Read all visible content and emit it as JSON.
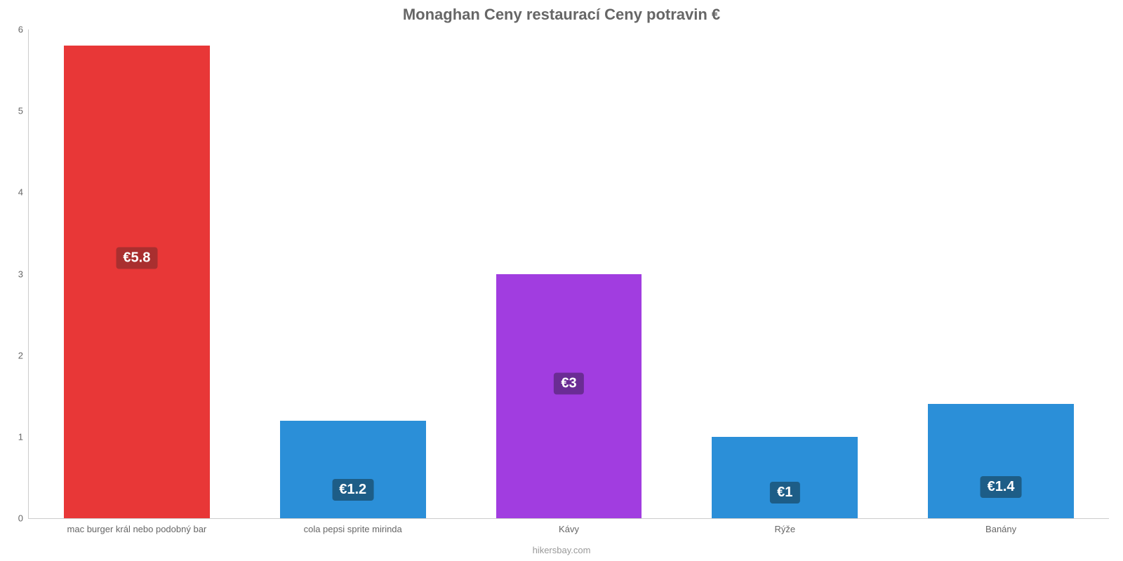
{
  "chart": {
    "type": "bar",
    "title": "Monaghan Ceny restaurací Ceny potravin €",
    "title_fontsize": 22,
    "title_color": "#666666",
    "subtitle": "hikersbay.com",
    "subtitle_color": "#999999",
    "background_color": "#ffffff",
    "axis_color": "#cccccc",
    "tick_label_color": "#666666",
    "tick_label_fontsize": 13,
    "y_axis": {
      "min": 0,
      "max": 6,
      "ticks": [
        0,
        1,
        2,
        3,
        4,
        5,
        6
      ]
    },
    "bar_width_pct": 13.5,
    "value_badge": {
      "fontsize": 20,
      "text_color": "#ffffff",
      "border_radius": 4
    },
    "series": [
      {
        "category": "mac burger král nebo podobný bar",
        "value": 5.8,
        "value_label": "€5.8",
        "bar_color": "#e83737",
        "badge_bg": "#a92f2f"
      },
      {
        "category": "cola pepsi sprite mirinda",
        "value": 1.2,
        "value_label": "€1.2",
        "bar_color": "#2b8fd8",
        "badge_bg": "#1d5d87"
      },
      {
        "category": "Kávy",
        "value": 3.0,
        "value_label": "€3",
        "bar_color": "#a13de0",
        "badge_bg": "#6a2c94"
      },
      {
        "category": "Rýže",
        "value": 1.0,
        "value_label": "€1",
        "bar_color": "#2b8fd8",
        "badge_bg": "#1d5d87"
      },
      {
        "category": "Banány",
        "value": 1.4,
        "value_label": "€1.4",
        "bar_color": "#2b8fd8",
        "badge_bg": "#1d5d87"
      }
    ]
  }
}
